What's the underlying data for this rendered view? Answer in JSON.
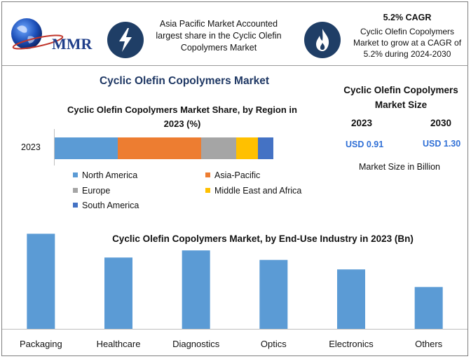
{
  "header": {
    "logo_text": "MMR",
    "region_note": "Asia Pacific Market Accounted largest share in the Cyclic Olefin Copolymers Market",
    "cagr_title": "5.2% CAGR",
    "cagr_text": "Cyclic Olefin Copolymers Market to grow at a CAGR of 5.2% during 2024-2030"
  },
  "main_title": "Cyclic Olefin Copolymers Market",
  "market_size": {
    "title": "Cyclic Olefin Copolymers Market Size",
    "year_start": "2023",
    "year_end": "2030",
    "value_start": "USD 0.91",
    "value_end": "USD 1.30",
    "unit_note": "Market Size in Billion"
  },
  "icons": [
    "bolt-icon",
    "flame-icon",
    "globe-icon"
  ],
  "chart_data": [
    {
      "type": "bar",
      "orientation": "horizontal-stacked",
      "title": "Cyclic Olefin Copolymers Market Share, by Region in 2023 (%)",
      "categories": [
        "2023"
      ],
      "series": [
        {
          "name": "North America",
          "values": [
            29
          ],
          "color": "#5b9bd5"
        },
        {
          "name": "Asia-Pacific",
          "values": [
            38
          ],
          "color": "#ed7d31"
        },
        {
          "name": "Europe",
          "values": [
            16
          ],
          "color": "#a5a5a5"
        },
        {
          "name": "Middle East and Africa",
          "values": [
            10
          ],
          "color": "#ffc000"
        },
        {
          "name": "South America",
          "values": [
            7
          ],
          "color": "#4472c4"
        }
      ],
      "legend": "bottom"
    },
    {
      "type": "bar",
      "title": "Cyclic Olefin Copolymers Market, by End-Use Industry in 2023 (Bn)",
      "categories": [
        "Packaging",
        "Healthcare",
        "Diagnostics",
        "Optics",
        "Electronics",
        "Others"
      ],
      "values": [
        0.2,
        0.15,
        0.165,
        0.145,
        0.125,
        0.088
      ],
      "ylim": [
        0,
        0.205
      ],
      "color": "#5b9bd5",
      "grid": false
    }
  ]
}
